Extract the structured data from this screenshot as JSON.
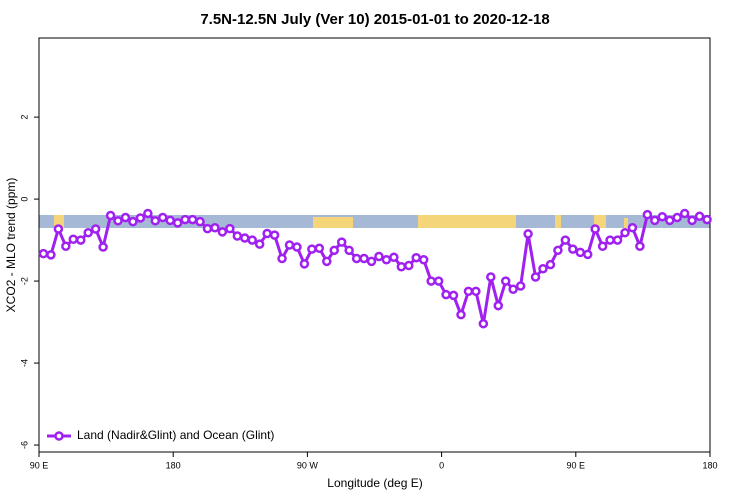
{
  "chart_data": {
    "type": "line",
    "title": "7.5N-12.5N July (Ver 10)   2015-01-01 to 2020-12-18",
    "x_label": "Longitude (deg E)",
    "y_label": "XCO2 - MLO trend (ppm)",
    "xlim": [
      90,
      540
    ],
    "ylim": [
      -6.17,
      3.93
    ],
    "xticks": [
      {
        "value": 90,
        "label": "90 E"
      },
      {
        "value": 180,
        "label": "180"
      },
      {
        "value": 270,
        "label": "90 W"
      },
      {
        "value": 360,
        "label": "0"
      },
      {
        "value": 450,
        "label": "90 E"
      },
      {
        "value": 540,
        "label": "180"
      }
    ],
    "yticks": [
      -6,
      -4,
      -2,
      0,
      2
    ],
    "legend": "bottom-left",
    "x": [
      93,
      98,
      103,
      108,
      113,
      118,
      123,
      128,
      133,
      138,
      143,
      148,
      153,
      158,
      163,
      168,
      173,
      178,
      183,
      188,
      193,
      198,
      203,
      208,
      213,
      218,
      223,
      228,
      233,
      238,
      243,
      248,
      253,
      258,
      263,
      268,
      273,
      278,
      283,
      288,
      293,
      298,
      303,
      308,
      313,
      318,
      323,
      328,
      333,
      338,
      343,
      348,
      353,
      358,
      363,
      368,
      373,
      378,
      383,
      388,
      393,
      398,
      403,
      408,
      413,
      418,
      423,
      428,
      433,
      438,
      443,
      448,
      453,
      458,
      463,
      468,
      473,
      478,
      483,
      488,
      493,
      498,
      503,
      508,
      513,
      518,
      523,
      528,
      533,
      538
    ],
    "series": [
      {
        "name": "Land (Nadir&Glint) and Ocean (Glint)",
        "color": "#a020f0",
        "values": [
          -1.33,
          -1.36,
          -0.73,
          -1.15,
          -0.98,
          -1.0,
          -0.82,
          -0.73,
          -1.17,
          -0.4,
          -0.53,
          -0.45,
          -0.55,
          -0.46,
          -0.35,
          -0.53,
          -0.45,
          -0.52,
          -0.58,
          -0.5,
          -0.5,
          -0.55,
          -0.72,
          -0.7,
          -0.8,
          -0.72,
          -0.9,
          -0.95,
          -1.0,
          -1.1,
          -0.84,
          -0.88,
          -1.45,
          -1.12,
          -1.17,
          -1.58,
          -1.22,
          -1.2,
          -1.52,
          -1.25,
          -1.05,
          -1.25,
          -1.45,
          -1.45,
          -1.52,
          -1.4,
          -1.48,
          -1.42,
          -1.65,
          -1.62,
          -1.43,
          -1.48,
          -2.0,
          -2.0,
          -2.33,
          -2.35,
          -2.82,
          -2.25,
          -2.25,
          -3.04,
          -1.9,
          -2.6,
          -2.0,
          -2.2,
          -2.12,
          -0.85,
          -1.9,
          -1.7,
          -1.6,
          -1.25,
          -1.0,
          -1.22,
          -1.3,
          -1.35,
          -0.73,
          -1.15,
          -1.0,
          -1.0,
          -0.82,
          -0.7,
          -1.15,
          -0.38,
          -0.52,
          -0.43,
          -0.52,
          -0.45,
          -0.35,
          -0.52,
          -0.42,
          -0.5
        ]
      }
    ]
  }
}
